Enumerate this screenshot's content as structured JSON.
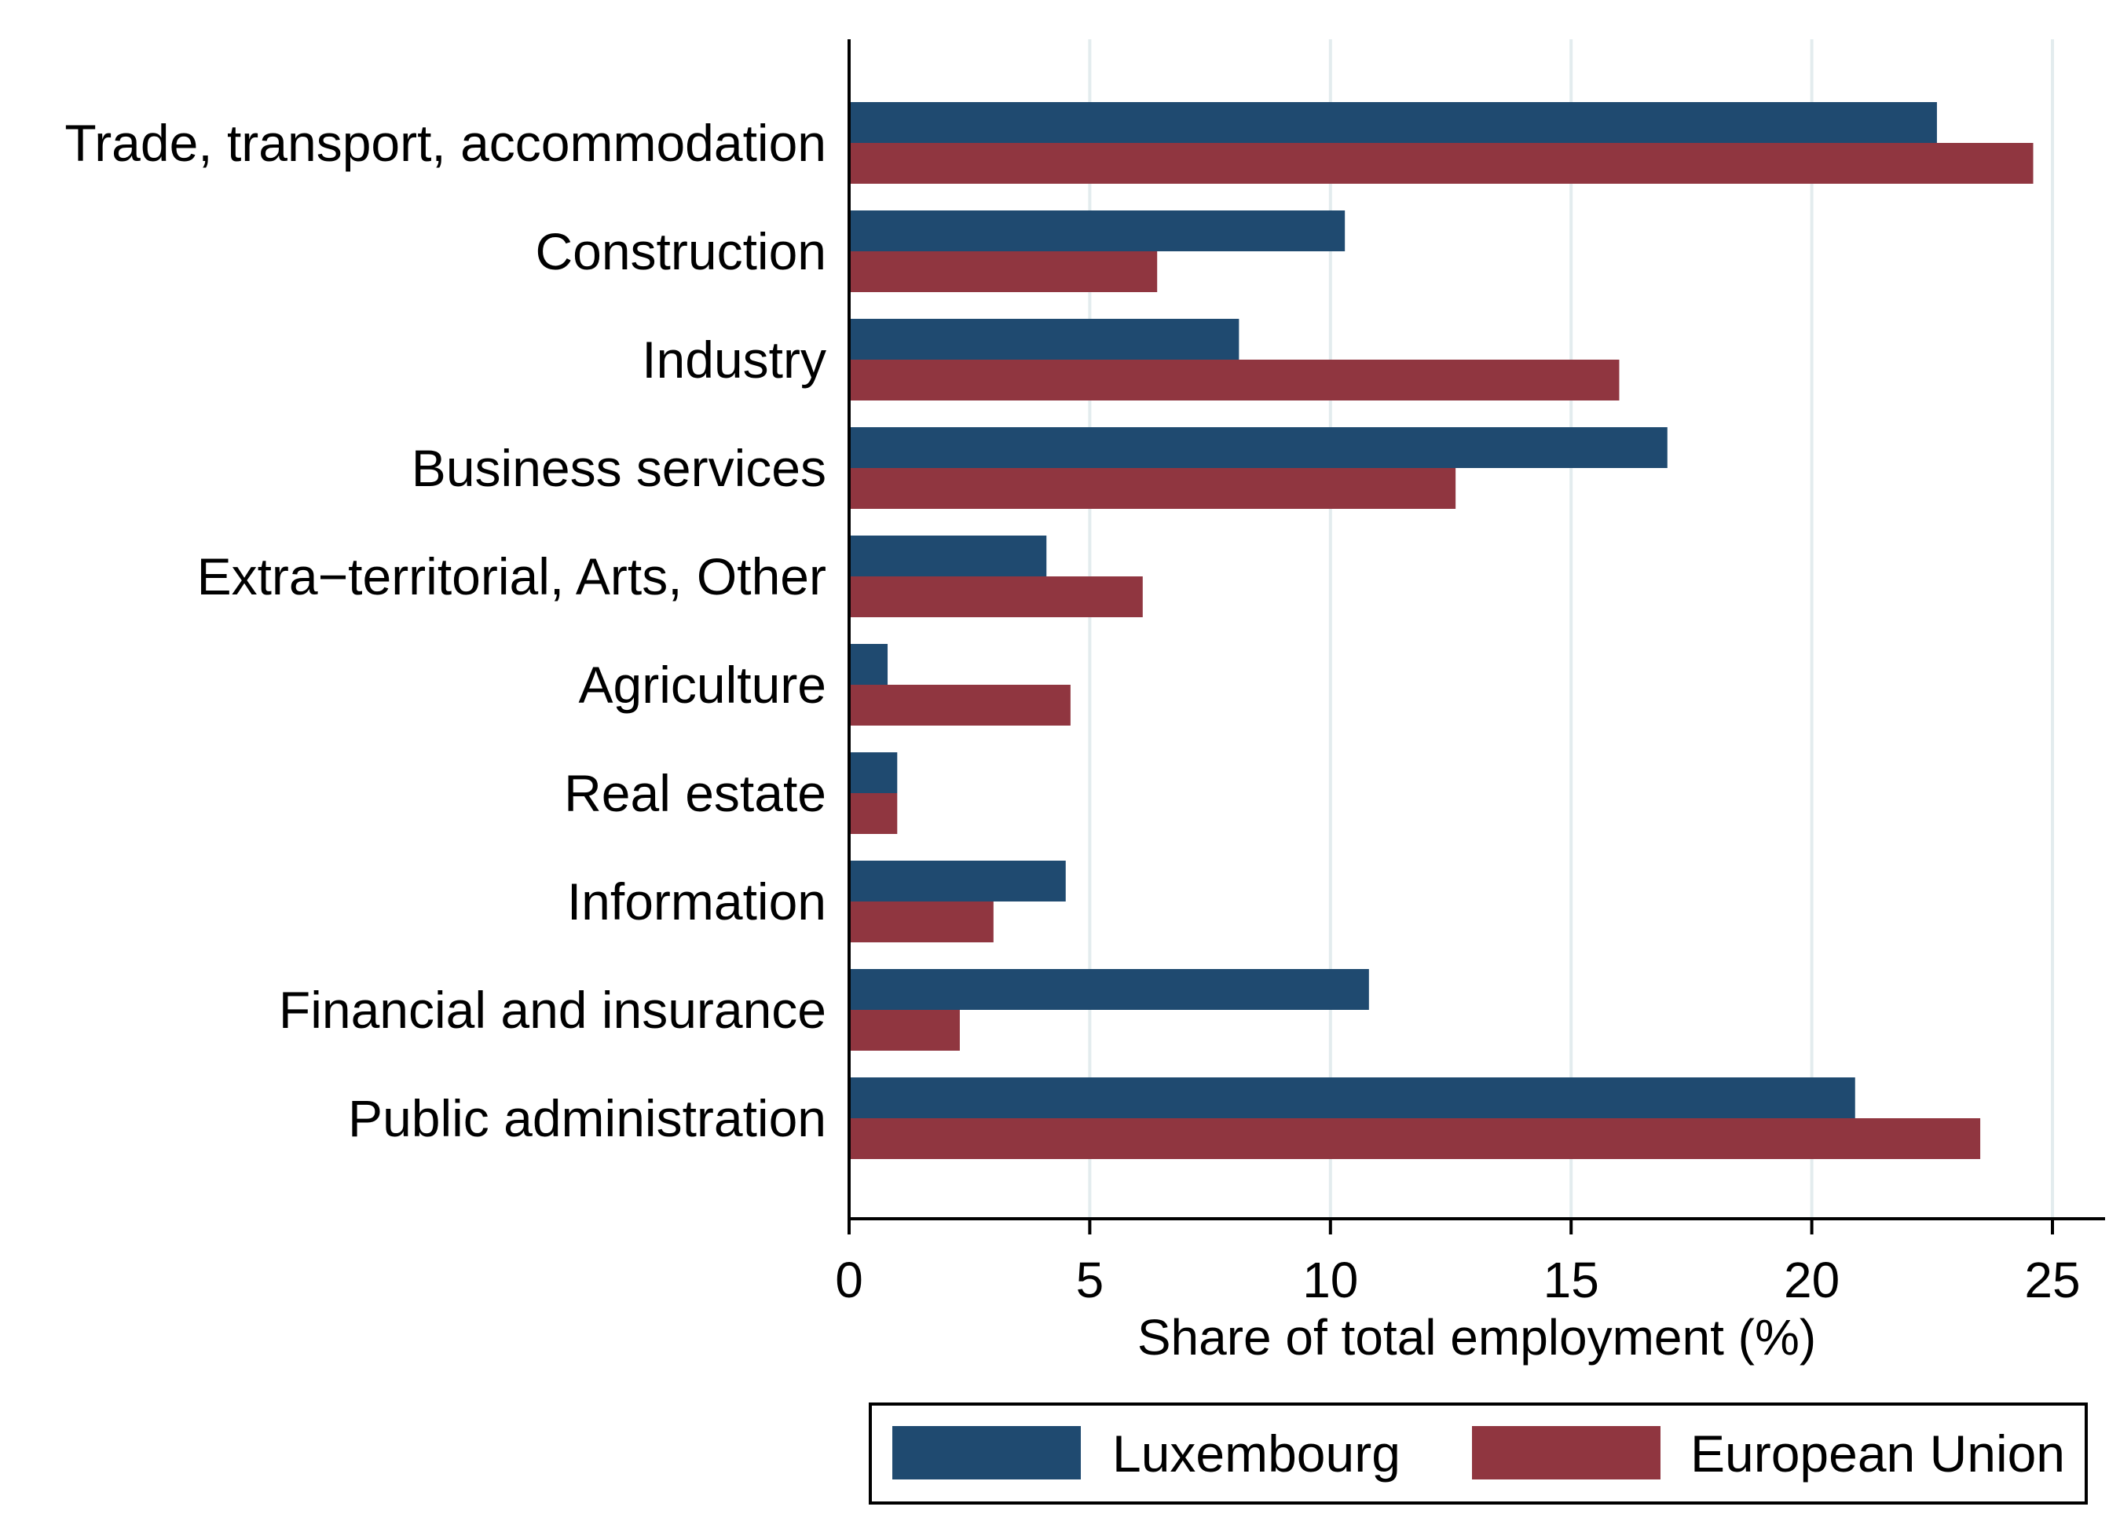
{
  "chart_data": {
    "type": "bar",
    "orientation": "horizontal",
    "title": "",
    "xlabel": "Share of total employment (%)",
    "ylabel": "",
    "xlim": [
      0,
      26
    ],
    "xticks": [
      "0",
      "5",
      "10",
      "15",
      "20",
      "25"
    ],
    "xtick_values": [
      0,
      5,
      10,
      15,
      20,
      25
    ],
    "grid": true,
    "legend_position": "bottom",
    "categories": [
      "Trade, transport, accommodation",
      "Construction",
      "Industry",
      "Business services",
      "Extra−territorial, Arts, Other",
      "Agriculture",
      "Real estate",
      "Information",
      "Financial and insurance",
      "Public administration"
    ],
    "series": [
      {
        "name": "Luxembourg",
        "color": "#1f4a70",
        "values": [
          22.6,
          10.3,
          8.1,
          17.0,
          4.1,
          0.8,
          1.0,
          4.5,
          10.8,
          20.9
        ]
      },
      {
        "name": "European Union",
        "color": "#903640",
        "values": [
          24.6,
          6.4,
          16.0,
          12.6,
          6.1,
          4.6,
          1.0,
          3.0,
          2.3,
          23.5
        ]
      }
    ]
  }
}
